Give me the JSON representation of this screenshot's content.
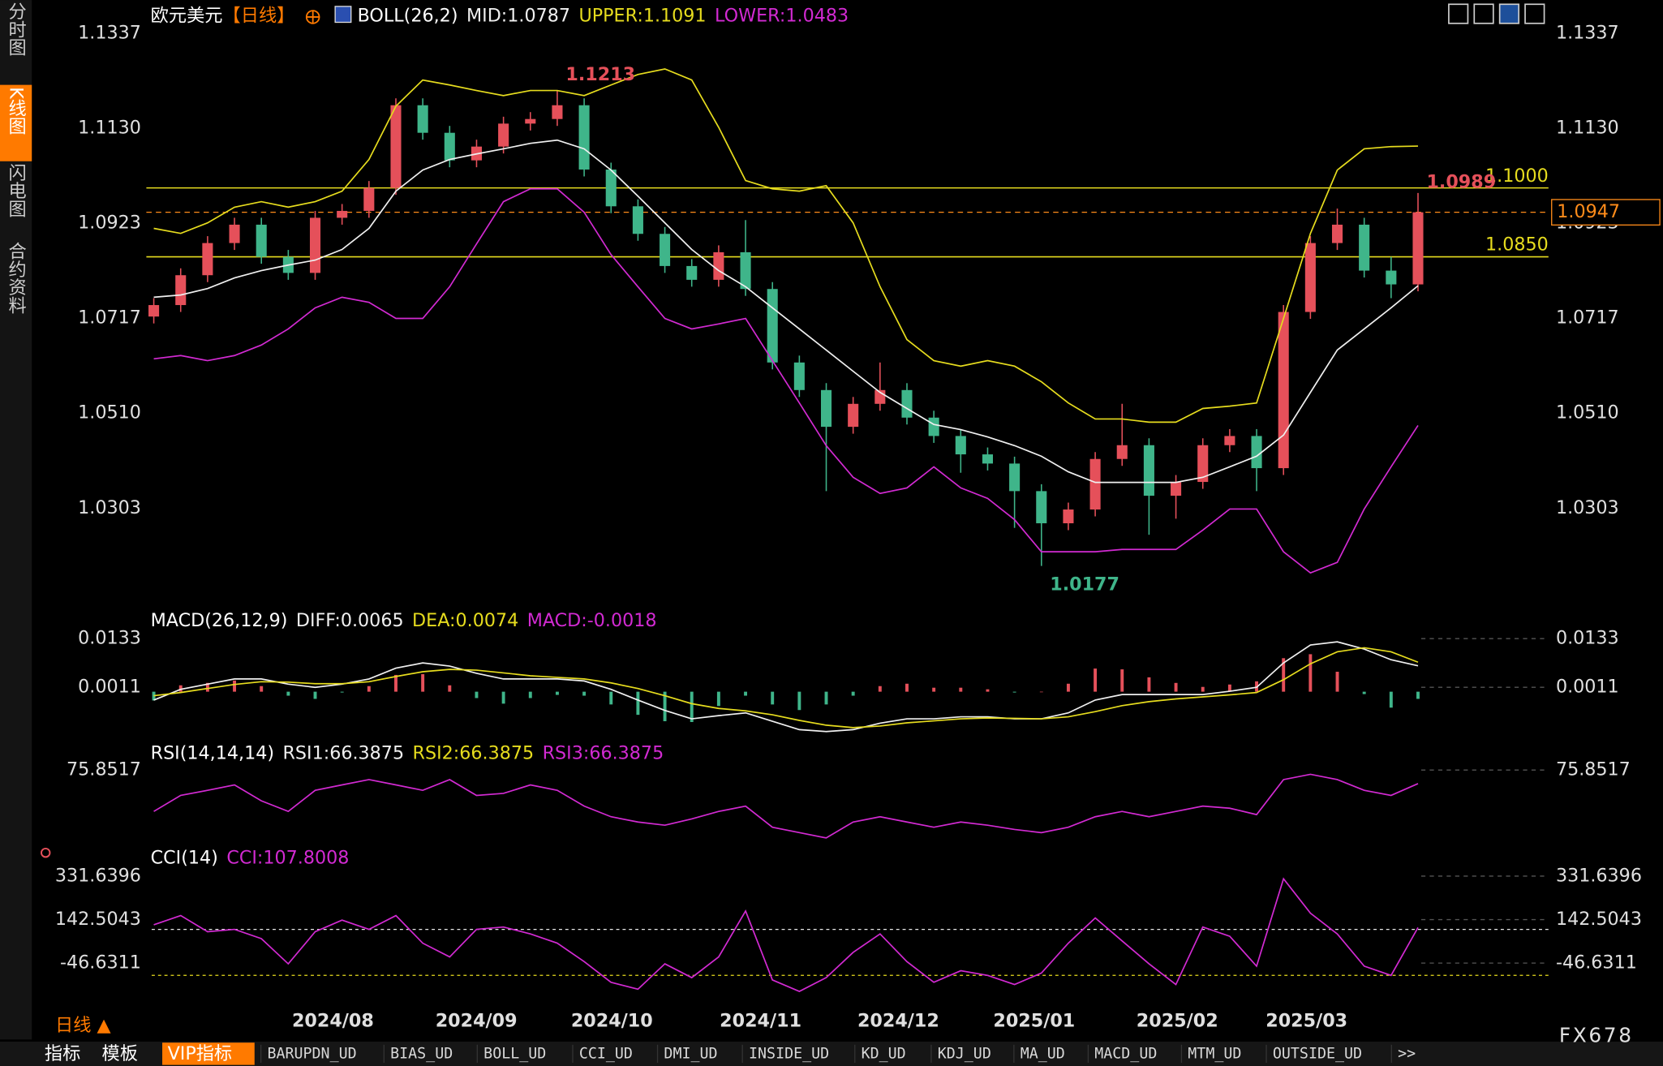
{
  "sidebar": [
    "分时图",
    "K线图",
    "闪电图",
    "合约资料"
  ],
  "chart_data": [
    {
      "type": "candlestick",
      "title": "欧元美元",
      "period": "【日线】",
      "indicator": "BOLL(26,2)",
      "up_color": "#e5505a",
      "down_color": "#3fb58a",
      "xlim": [
        0,
        47
      ],
      "xticks": [
        {
          "value": 6.66,
          "label": "2024/08"
        },
        {
          "value": 11.99,
          "label": "2024/09"
        },
        {
          "value": 17.03,
          "label": "2024/10"
        },
        {
          "value": 22.56,
          "label": "2024/11"
        },
        {
          "value": 27.68,
          "label": "2024/12"
        },
        {
          "value": 32.73,
          "label": "2025/01"
        },
        {
          "value": 38.05,
          "label": "2025/02"
        },
        {
          "value": 42.86,
          "label": "2025/03"
        }
      ],
      "ylim": [
        1.0093,
        1.1409
      ],
      "yticks": [
        1.1337,
        {
          "value": 1.113,
          "label": "1.1130"
        },
        1.0923,
        1.0717,
        {
          "value": 1.051,
          "label": "1.0510"
        },
        1.0303
      ],
      "grid": false,
      "values": [
        [
          1.072,
          1.076,
          1.0705,
          1.0745
        ],
        [
          1.0745,
          1.0825,
          1.073,
          1.081
        ],
        [
          1.081,
          1.0895,
          1.0795,
          1.088
        ],
        [
          1.088,
          1.0935,
          1.0865,
          1.092
        ],
        [
          1.092,
          1.0935,
          1.0835,
          1.085
        ],
        [
          1.085,
          1.0865,
          1.08,
          1.0815
        ],
        [
          1.0815,
          1.095,
          1.08,
          1.0935
        ],
        [
          1.0935,
          1.0965,
          1.092,
          1.095
        ],
        [
          1.095,
          1.1015,
          1.0935,
          1.1
        ],
        [
          1.1,
          1.1195,
          1.0985,
          1.118
        ],
        [
          1.118,
          1.1195,
          1.1105,
          1.112
        ],
        [
          1.112,
          1.1135,
          1.1045,
          1.106
        ],
        [
          1.106,
          1.1105,
          1.1045,
          1.109
        ],
        [
          1.109,
          1.1155,
          1.1075,
          1.114
        ],
        [
          1.114,
          1.1165,
          1.1125,
          1.115
        ],
        [
          1.115,
          1.1213,
          1.1135,
          1.118
        ],
        [
          1.118,
          1.1195,
          1.1025,
          1.104
        ],
        [
          1.104,
          1.1055,
          1.0945,
          1.096
        ],
        [
          1.096,
          1.0975,
          1.0885,
          1.09
        ],
        [
          1.09,
          1.0915,
          1.0815,
          1.083
        ],
        [
          1.083,
          1.0845,
          1.0785,
          1.08
        ],
        [
          1.08,
          1.0875,
          1.0785,
          1.086
        ],
        [
          1.086,
          1.093,
          1.0765,
          1.078
        ],
        [
          1.078,
          1.0795,
          1.0605,
          1.062
        ],
        [
          1.062,
          1.0635,
          1.0545,
          1.056
        ],
        [
          1.056,
          1.0575,
          1.034,
          1.048
        ],
        [
          1.048,
          1.0545,
          1.0465,
          1.053
        ],
        [
          1.053,
          1.062,
          1.0515,
          1.056
        ],
        [
          1.056,
          1.0575,
          1.0485,
          1.05
        ],
        [
          1.05,
          1.0515,
          1.0445,
          1.046
        ],
        [
          1.046,
          1.0475,
          1.038,
          1.042
        ],
        [
          1.042,
          1.0435,
          1.0385,
          1.04
        ],
        [
          1.04,
          1.0415,
          1.026,
          1.034
        ],
        [
          1.034,
          1.0355,
          1.0177,
          1.027
        ],
        [
          1.027,
          1.0315,
          1.0255,
          1.03
        ],
        [
          1.03,
          1.0425,
          1.0285,
          1.041
        ],
        [
          1.041,
          1.053,
          1.0395,
          1.044
        ],
        [
          1.044,
          1.0455,
          1.0245,
          1.033
        ],
        [
          1.033,
          1.0375,
          1.028,
          1.036
        ],
        [
          1.036,
          1.0455,
          1.0345,
          1.044
        ],
        [
          1.044,
          1.0475,
          1.0425,
          1.046
        ],
        [
          1.046,
          1.0475,
          1.034,
          1.039
        ],
        [
          1.039,
          1.0745,
          1.0375,
          1.073
        ],
        [
          1.073,
          1.0895,
          1.0715,
          1.088
        ],
        [
          1.088,
          1.0955,
          1.0865,
          1.092
        ],
        [
          1.092,
          1.0935,
          1.0805,
          1.082
        ],
        [
          1.082,
          1.085,
          1.076,
          1.079
        ],
        [
          1.079,
          1.0989,
          1.0775,
          1.0947
        ]
      ],
      "overlays": [
        {
          "name": "MID:1.0787",
          "color": "#f0f0f0",
          "values": [
            1.0762,
            1.0767,
            1.0781,
            1.0804,
            1.082,
            1.0832,
            1.0843,
            1.0866,
            1.0912,
            1.0993,
            1.1039,
            1.1062,
            1.1074,
            1.1085,
            1.1097,
            1.1104,
            1.1085,
            1.1039,
            1.0982,
            1.0924,
            1.0866,
            1.082,
            1.0785,
            1.0739,
            1.0693,
            1.0647,
            1.0601,
            1.0555,
            1.052,
            1.0485,
            1.0474,
            1.0458,
            1.0439,
            1.0416,
            1.0382,
            1.0359,
            1.0359,
            1.0359,
            1.0359,
            1.037,
            1.0393,
            1.0416,
            1.0462,
            1.0555,
            1.0647,
            1.0693,
            1.0739,
            1.0787
          ]
        },
        {
          "name": "UPPER:1.1091",
          "color": "#e6dc1e",
          "values": [
            1.0912,
            1.0901,
            1.0924,
            1.0958,
            1.097,
            1.0958,
            1.097,
            1.0993,
            1.1062,
            1.1178,
            1.1235,
            1.1224,
            1.1212,
            1.1201,
            1.1212,
            1.1212,
            1.1201,
            1.1224,
            1.1247,
            1.1259,
            1.1235,
            1.1132,
            1.1016,
            1.0998,
            1.0993,
            1.1005,
            1.0924,
            1.0785,
            1.067,
            1.0624,
            1.0612,
            1.0624,
            1.0612,
            1.0578,
            1.0532,
            1.0497,
            1.0497,
            1.049,
            1.049,
            1.052,
            1.0525,
            1.0532,
            1.0716,
            1.0901,
            1.1039,
            1.1085,
            1.109,
            1.1091
          ]
        },
        {
          "name": "LOWER:1.0483",
          "color": "#d22ad2",
          "values": [
            1.0628,
            1.0635,
            1.0624,
            1.0635,
            1.0658,
            1.0693,
            1.0739,
            1.0762,
            1.0751,
            1.0716,
            1.0716,
            1.0785,
            1.0878,
            1.097,
            1.0998,
            1.0998,
            1.0947,
            1.0855,
            1.0785,
            1.0716,
            1.0693,
            1.0704,
            1.0716,
            1.0624,
            1.0532,
            1.0439,
            1.037,
            1.0335,
            1.0347,
            1.0393,
            1.0347,
            1.0324,
            1.0278,
            1.0208,
            1.0208,
            1.0208,
            1.0213,
            1.0213,
            1.0213,
            1.0255,
            1.0301,
            1.0301,
            1.0208,
            1.0162,
            1.0185,
            1.0301,
            1.0393,
            1.0483
          ]
        }
      ],
      "hlines": [
        {
          "value": 1.1,
          "label": "1.1000"
        },
        {
          "value": 1.085,
          "label": "1.0850"
        }
      ],
      "hline_color": "#e6dc1e",
      "last_price": 1.0947,
      "annotations": {
        "high": 1.1213,
        "low": 1.0177,
        "last_high": 1.0989
      }
    },
    {
      "type": "macd",
      "title": "MACD(26,12,9)",
      "ylim": [
        -0.0114,
        0.0213
      ],
      "yticks": [
        0.0133,
        0.0011
      ],
      "grid": true,
      "series": [
        {
          "name": "DIFF:0.0065",
          "color": "#f0f0f0",
          "values": [
            -0.0021,
            0.0006,
            0.0019,
            0.0032,
            0.0032,
            0.0019,
            0.0011,
            0.0019,
            0.0032,
            0.0059,
            0.0072,
            0.0064,
            0.0046,
            0.0032,
            0.0032,
            0.0032,
            0.0027,
            0.0006,
            -0.0021,
            -0.0047,
            -0.0068,
            -0.006,
            -0.0053,
            -0.0074,
            -0.0095,
            -0.01,
            -0.0095,
            -0.0079,
            -0.0068,
            -0.0068,
            -0.0063,
            -0.0063,
            -0.0068,
            -0.0068,
            -0.0053,
            -0.0021,
            -0.0007,
            -0.0007,
            -0.0007,
            -0.0007,
            0.0001,
            0.0011,
            0.0072,
            0.0117,
            0.0125,
            0.0107,
            0.008,
            0.0065
          ]
        },
        {
          "name": "DEA:0.0074",
          "color": "#e6dc1e",
          "values": [
            -0.001,
            -0.0002,
            0.0008,
            0.0018,
            0.0025,
            0.0024,
            0.002,
            0.002,
            0.0025,
            0.0038,
            0.005,
            0.0056,
            0.0054,
            0.0047,
            0.004,
            0.0036,
            0.0032,
            0.0022,
            0.0008,
            -0.001,
            -0.003,
            -0.0042,
            -0.0048,
            -0.0058,
            -0.0072,
            -0.0084,
            -0.009,
            -0.0086,
            -0.0078,
            -0.0073,
            -0.0068,
            -0.0066,
            -0.0067,
            -0.0068,
            -0.0063,
            -0.005,
            -0.0035,
            -0.0025,
            -0.0018,
            -0.0013,
            -0.0008,
            -0.0002,
            0.003,
            0.007,
            0.01,
            0.011,
            0.01,
            0.0074
          ]
        }
      ],
      "histogram": {
        "name": "MACD:-0.0018",
        "color": "#d22ad2",
        "up_color": "#e5505a",
        "down_color": "#3fb58a",
        "values": [
          -0.0022,
          0.0016,
          0.0022,
          0.0028,
          0.0014,
          -0.001,
          -0.0018,
          -0.0002,
          0.0014,
          0.0042,
          0.0044,
          0.0016,
          -0.0016,
          -0.003,
          -0.0016,
          -0.0008,
          -0.001,
          -0.0032,
          -0.0058,
          -0.0074,
          -0.0076,
          -0.0036,
          -0.001,
          -0.0032,
          -0.0046,
          -0.0032,
          -0.001,
          0.0014,
          0.002,
          0.001,
          0.001,
          0.0006,
          -0.0002,
          0.0,
          0.002,
          0.0058,
          0.0056,
          0.0036,
          0.0022,
          0.0012,
          0.0018,
          0.0026,
          0.0084,
          0.0094,
          0.005,
          -0.0006,
          -0.004,
          -0.0018
        ]
      }
    },
    {
      "type": "line",
      "title": "RSI(14,14,14)",
      "ylim": [
        25,
        95
      ],
      "yticks": [
        75.8517
      ],
      "grid": true,
      "series": [
        {
          "name": "RSI1:66.3875",
          "color": "#f0f0f0"
        },
        {
          "name": "RSI2:66.3875",
          "color": "#e6dc1e"
        },
        {
          "name": "RSI3:66.3875",
          "color": "#d22ad2"
        }
      ],
      "values": [
        47.1,
        58.2,
        61.8,
        65.5,
        54.5,
        47.1,
        61.8,
        65.5,
        69.2,
        65.5,
        61.8,
        69.2,
        58.2,
        59.6,
        65.5,
        61.8,
        50.8,
        43.4,
        39.7,
        37.5,
        41.9,
        47.1,
        50.8,
        36.1,
        32.4,
        28.7,
        39.7,
        43.4,
        39.7,
        36.1,
        39.7,
        37.5,
        34.6,
        32.4,
        36.1,
        43.4,
        47.1,
        43.4,
        47.1,
        50.8,
        49.3,
        44.9,
        69.2,
        72.9,
        69.2,
        61.8,
        58.2,
        66.3875
      ]
    },
    {
      "type": "line",
      "title": "CCI(14)",
      "ylim": [
        -240.4,
        451.6
      ],
      "yticks": [
        331.6396,
        142.5043,
        -46.6311
      ],
      "grid": true,
      "series": [
        {
          "name": "CCI:107.8008",
          "color": "#d22ad2"
        }
      ],
      "reference_lines": [
        100,
        -100
      ],
      "reference_colors": [
        "#e8e8e8",
        "#e6dc1e"
      ],
      "values": [
        120,
        160,
        90,
        100,
        60,
        -50,
        90,
        140,
        100,
        160,
        40,
        -20,
        100,
        110,
        80,
        40,
        -40,
        -130,
        -160,
        -50,
        -110,
        -20,
        180,
        -120,
        -170,
        -110,
        0,
        80,
        -40,
        -130,
        -80,
        -100,
        -140,
        -90,
        40,
        150,
        50,
        -50,
        -140,
        110,
        70,
        -60,
        320,
        170,
        80,
        -60,
        -100,
        107.8008
      ]
    }
  ],
  "footer_period": "日线 ▲",
  "brand": "FX678",
  "tabs": [
    "指标",
    "模板",
    "VIP指标",
    "BARUPDN_UD",
    "BIAS_UD",
    "BOLL_UD",
    "CCI_UD",
    "DMI_UD",
    "INSIDE_UD",
    "KD_UD",
    "KDJ_UD",
    "MA_UD",
    "MACD_UD",
    "MTM_UD",
    "OUTSIDE_UD",
    ">>"
  ]
}
